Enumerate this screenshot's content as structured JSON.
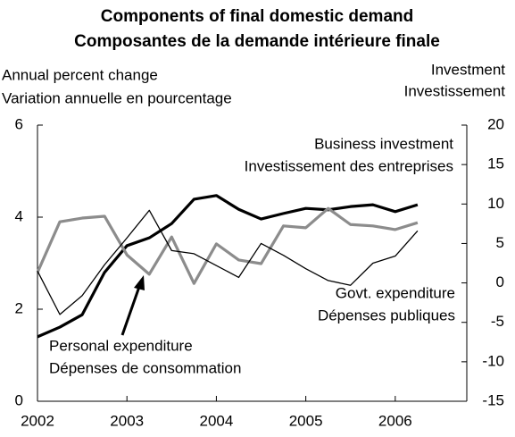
{
  "chart_data": {
    "type": "line",
    "title": [
      "Components of final domestic demand",
      "Composantes de la demande intérieure finale"
    ],
    "ylabel": [
      "Annual percent change",
      "Variation annuelle en pourcentage"
    ],
    "y2label": [
      "Investment",
      "Investissement"
    ],
    "x": [
      2002,
      2002.25,
      2002.5,
      2002.75,
      2003,
      2003.25,
      2003.5,
      2003.75,
      2004,
      2004.25,
      2004.5,
      2004.75,
      2005,
      2005.25,
      2005.5,
      2005.75,
      2006,
      2006.25
    ],
    "xlim": [
      2002,
      2006.8
    ],
    "xticks": [
      2002,
      2003,
      2004,
      2005,
      2006
    ],
    "ylim": [
      0,
      6
    ],
    "yticks": [
      0,
      2,
      4,
      6
    ],
    "y2lim": [
      -15,
      20
    ],
    "y2ticks": [
      -15,
      -10,
      -5,
      0,
      5,
      10,
      15,
      20
    ],
    "series": [
      {
        "name": [
          "Personal expenditure",
          "Dépenses de consommation"
        ],
        "color": "#000000",
        "values": [
          1.4,
          1.61,
          1.88,
          2.8,
          3.38,
          3.55,
          3.86,
          4.39,
          4.47,
          4.17,
          3.96,
          4.08,
          4.19,
          4.16,
          4.23,
          4.27,
          4.12,
          4.27
        ]
      },
      {
        "name": [
          "Govt. expenditure",
          "Dépenses publiques"
        ],
        "color": "#8c8c8c",
        "values": [
          2.8,
          3.9,
          3.98,
          4.02,
          3.18,
          2.76,
          3.57,
          2.56,
          3.42,
          3.07,
          2.99,
          3.81,
          3.77,
          4.19,
          3.84,
          3.81,
          3.73,
          3.88
        ]
      },
      {
        "name": [
          "Business investment",
          "Investissement des entreprises"
        ],
        "color": "#000000",
        "axis": "y2",
        "values": [
          1.5,
          -4.0,
          -1.6,
          2.3,
          5.7,
          9.2,
          4.1,
          3.7,
          2.2,
          0.7,
          5.0,
          3.5,
          1.8,
          0.3,
          -0.3,
          2.5,
          3.4,
          6.6
        ]
      }
    ]
  }
}
